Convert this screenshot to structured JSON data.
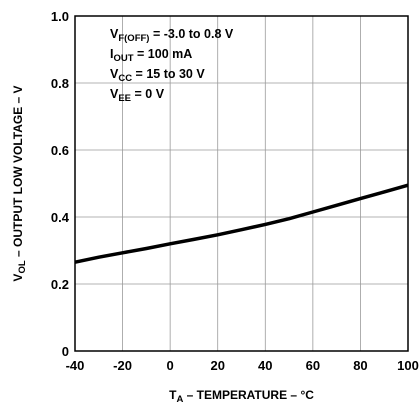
{
  "chart_data": {
    "type": "line",
    "title": "",
    "xlabel": {
      "main": "T",
      "sub": "A",
      "rest": " – TEMPERATURE – °C"
    },
    "ylabel": {
      "main": "V",
      "sub": "OL",
      "rest": " – OUTPUT LOW VOLTAGE – V"
    },
    "xlim": [
      -40,
      100
    ],
    "ylim": [
      0,
      1.0
    ],
    "x_ticks": [
      -40,
      -20,
      0,
      20,
      40,
      60,
      80,
      100
    ],
    "y_ticks": [
      0,
      0.2,
      0.4,
      0.6,
      0.8,
      1.0
    ],
    "x_tick_labels": [
      "-40",
      "-20",
      "0",
      "20",
      "40",
      "60",
      "80",
      "100"
    ],
    "y_tick_labels": [
      "0",
      "0.2",
      "0.4",
      "0.6",
      "0.8",
      "1.0"
    ],
    "grid": true,
    "series": [
      {
        "x": [
          -40,
          -30,
          -20,
          -10,
          0,
          10,
          20,
          30,
          40,
          50,
          60,
          70,
          80,
          90,
          100
        ],
        "y": [
          0.265,
          0.28,
          0.293,
          0.306,
          0.32,
          0.333,
          0.347,
          0.362,
          0.378,
          0.395,
          0.415,
          0.435,
          0.455,
          0.475,
          0.495
        ]
      }
    ],
    "annotations": [
      {
        "main": "V",
        "sub": "F(OFF)",
        "rest": " = -3.0 to 0.8 V"
      },
      {
        "main": "I",
        "sub": "OUT",
        "rest": " = 100 mA"
      },
      {
        "main": "V",
        "sub": "CC",
        "rest": " = 15 to 30 V"
      },
      {
        "main": "V",
        "sub": "EE",
        "rest": " = 0 V"
      }
    ]
  }
}
